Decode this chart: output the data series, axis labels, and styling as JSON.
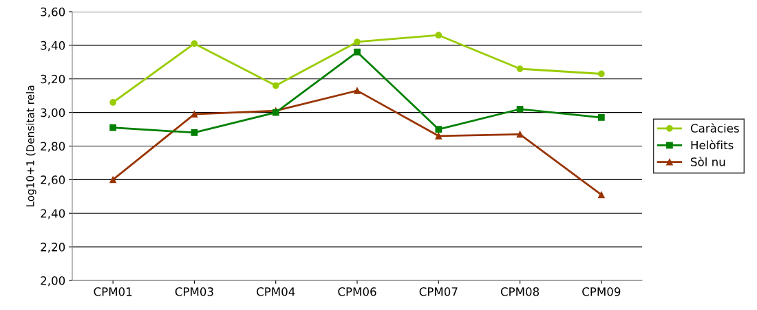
{
  "chart_data": {
    "type": "line",
    "ylabel": "Log10+1 (Densitat rela",
    "categories": [
      "CPM01",
      "CPM03",
      "CPM04",
      "CPM06",
      "CPM07",
      "CPM08",
      "CPM09"
    ],
    "series": [
      {
        "name": "Caràcies",
        "color": "#99cc00",
        "marker": "circle",
        "values": [
          3.06,
          3.41,
          3.16,
          3.42,
          3.46,
          3.26,
          3.23
        ]
      },
      {
        "name": "Helòfits",
        "color": "#008000",
        "marker": "square",
        "values": [
          2.91,
          2.88,
          3.0,
          3.36,
          2.9,
          3.02,
          2.97
        ]
      },
      {
        "name": "Sòl nu",
        "color": "#993300",
        "marker": "triangle",
        "values": [
          2.6,
          2.99,
          3.01,
          3.13,
          2.86,
          2.87,
          2.51
        ]
      }
    ],
    "ylim": [
      2.0,
      3.6
    ],
    "yticks": [
      {
        "value": 2.0,
        "label": "2,00"
      },
      {
        "value": 2.2,
        "label": "2,20"
      },
      {
        "value": 2.4,
        "label": "2,40"
      },
      {
        "value": 2.6,
        "label": "2,60"
      },
      {
        "value": 2.8,
        "label": "2,80"
      },
      {
        "value": 3.0,
        "label": "3,00"
      },
      {
        "value": 3.2,
        "label": "3,20"
      },
      {
        "value": 3.4,
        "label": "3,40"
      },
      {
        "value": 3.6,
        "label": "3,60"
      }
    ],
    "grid": "y",
    "legend": "right"
  }
}
